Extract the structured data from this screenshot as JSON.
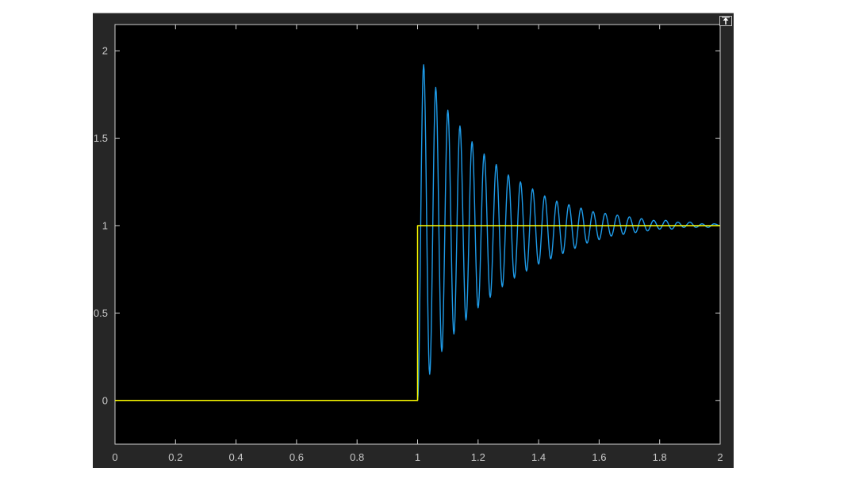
{
  "window": {
    "restore_button": "arrow-up-icon"
  },
  "colors": {
    "background": "#262626",
    "axes": "#000000",
    "axis_lines": "#cfcfcf",
    "tick_labels": "#c8c8c8",
    "reference_signal": "#ffff00",
    "response_signal": "#1e9be8"
  },
  "chart_data": {
    "type": "line",
    "title": "",
    "xlabel": "",
    "ylabel": "",
    "xlim": [
      0,
      2
    ],
    "ylim": [
      -0.25,
      2.15
    ],
    "grid": false,
    "legend": "none",
    "x_ticks": [
      "0",
      "0.2",
      "0.4",
      "0.6",
      "0.8",
      "1",
      "1.2",
      "1.4",
      "1.6",
      "1.8",
      "2"
    ],
    "y_ticks": [
      "0",
      "0.5",
      "1",
      "1.5",
      "2"
    ],
    "series": [
      {
        "color": "#ffff00",
        "x": [
          0,
          1,
          1,
          2
        ],
        "y": [
          0,
          0,
          1,
          1
        ]
      },
      {
        "color": "#1e9be8",
        "x": [
          0,
          1,
          1.02,
          1.04,
          1.06,
          1.08,
          1.1,
          1.12,
          1.14,
          1.16,
          1.18,
          1.2,
          1.22,
          1.24,
          1.26,
          1.28,
          1.3,
          1.32,
          1.34,
          1.36,
          1.38,
          1.4,
          1.42,
          1.44,
          1.46,
          1.48,
          1.5,
          1.52,
          1.54,
          1.56,
          1.58,
          1.6,
          1.62,
          1.64,
          1.66,
          1.68,
          1.7,
          1.72,
          1.74,
          1.76,
          1.78,
          1.8,
          1.82,
          1.84,
          1.86,
          1.88,
          1.9,
          1.92,
          1.94,
          1.96,
          1.98,
          2.0
        ],
        "y": [
          0,
          0,
          1.92,
          0.15,
          1.79,
          0.28,
          1.66,
          0.38,
          1.57,
          0.46,
          1.48,
          0.53,
          1.41,
          0.59,
          1.35,
          0.65,
          1.29,
          0.7,
          1.25,
          0.74,
          1.21,
          0.78,
          1.17,
          0.81,
          1.14,
          0.84,
          1.12,
          0.87,
          1.1,
          0.9,
          1.08,
          0.92,
          1.07,
          0.94,
          1.06,
          0.95,
          1.05,
          0.96,
          1.04,
          0.97,
          1.03,
          0.98,
          1.03,
          0.98,
          1.02,
          0.99,
          1.02,
          0.99,
          1.01,
          0.99,
          1.01,
          1.0
        ]
      }
    ]
  }
}
